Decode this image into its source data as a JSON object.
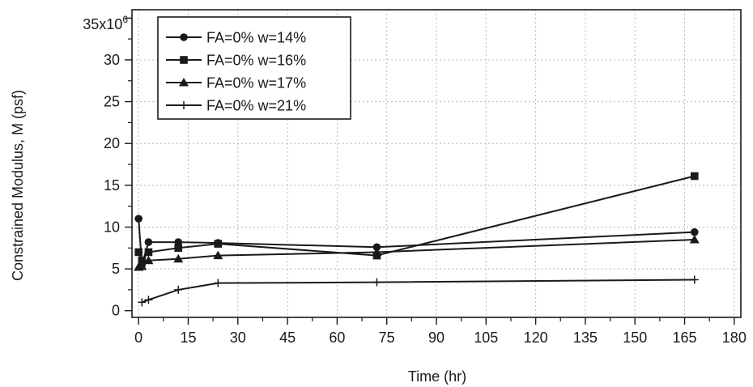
{
  "chart_data": {
    "type": "line",
    "title": "",
    "xlabel": "Time  (hr)",
    "ylabel": "Constrained Modulus, M (psf)",
    "y_multiplier_label": {
      "base": "35x10",
      "exponent": "6"
    },
    "xlim": [
      -2,
      182
    ],
    "ylim": [
      -0.8,
      36
    ],
    "x_ticks": [
      0,
      15,
      30,
      45,
      60,
      75,
      90,
      105,
      120,
      135,
      150,
      165,
      180
    ],
    "y_ticks": [
      0,
      5,
      10,
      15,
      20,
      25,
      30
    ],
    "y_tick_labels": [
      "0",
      "5",
      "10",
      "15",
      "20",
      "25",
      "30"
    ],
    "grid": true,
    "legend_position": "top-left",
    "series": [
      {
        "name": "FA=0% w=14%",
        "marker": "circle",
        "x": [
          0,
          1,
          3,
          12,
          24,
          72,
          168
        ],
        "y": [
          11.0,
          5.5,
          8.2,
          8.2,
          8.1,
          7.6,
          9.4
        ]
      },
      {
        "name": "FA=0% w=16%",
        "marker": "square",
        "x": [
          0,
          1,
          3,
          12,
          24,
          72,
          168
        ],
        "y": [
          7.0,
          6.0,
          7.0,
          7.5,
          8.0,
          6.6,
          16.1
        ]
      },
      {
        "name": "FA=0% w=17%",
        "marker": "triangle",
        "x": [
          0,
          1,
          3,
          12,
          24,
          72,
          168
        ],
        "y": [
          5.2,
          5.3,
          6.0,
          6.2,
          6.6,
          7.0,
          8.5
        ]
      },
      {
        "name": "FA=0% w=21%",
        "marker": "plus",
        "x": [
          1,
          3,
          12,
          24,
          72,
          168
        ],
        "y": [
          1.0,
          1.3,
          2.5,
          3.3,
          3.4,
          3.7
        ]
      }
    ]
  }
}
